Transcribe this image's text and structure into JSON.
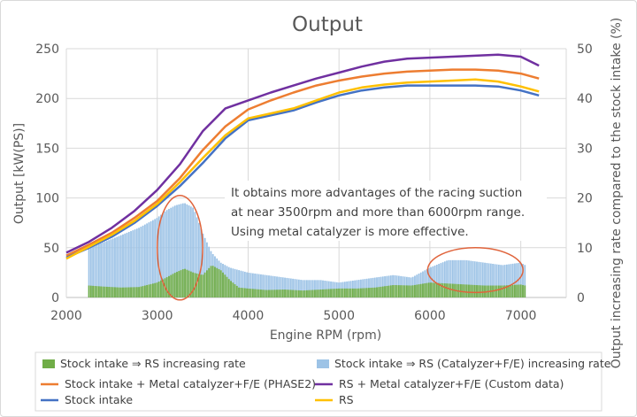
{
  "chart_data": {
    "type": "line",
    "title": "Output",
    "xlabel": "Engine RPM (rpm)",
    "ylabel": "Output [kW(PS)]",
    "y2label": "Output increasing rate compared to the stock intake (%)",
    "xlim": [
      2000,
      7500
    ],
    "ylim": [
      0,
      250
    ],
    "y2lim": [
      0,
      50
    ],
    "x_ticks": [
      "2000",
      "3000",
      "4000",
      "5000",
      "6000",
      "7000"
    ],
    "y_ticks": [
      "0",
      "50",
      "100",
      "150",
      "200",
      "250"
    ],
    "y2_ticks": [
      "0",
      "10",
      "20",
      "30",
      "40",
      "50"
    ],
    "grid": true,
    "legend_position": "bottom",
    "annotation": [
      "It obtains more advantages of the racing suction",
      "at near 3500rpm and more than 6000rpm range.",
      "Using metal catalyzer is more effective."
    ],
    "rate_series": [
      {
        "name": "Stock intake ⇒ RS increasing rate",
        "color": "#70ad47",
        "axis": "y2",
        "x": [
          2250,
          2400,
          2600,
          2800,
          3000,
          3200,
          3300,
          3400,
          3500,
          3600,
          3700,
          3800,
          3900,
          4000,
          4200,
          4400,
          4600,
          4800,
          5000,
          5200,
          5400,
          5600,
          5800,
          6000,
          6200,
          6400,
          6600,
          6800,
          7000,
          7050
        ],
        "values": [
          2.4,
          2.2,
          2.0,
          2.1,
          3.0,
          5.0,
          5.8,
          5.0,
          4.5,
          6.5,
          5.5,
          3.5,
          2.0,
          1.8,
          1.5,
          1.6,
          1.4,
          1.6,
          1.8,
          1.8,
          2.0,
          2.5,
          2.4,
          3.0,
          2.8,
          2.6,
          2.4,
          2.4,
          2.6,
          2.4
        ]
      },
      {
        "name": "Stock intake ⇒ RS (Catalyzer+F/E) increasing rate",
        "color": "#9dc3e6",
        "axis": "y2",
        "x": [
          2250,
          2400,
          2600,
          2800,
          3000,
          3100,
          3200,
          3300,
          3400,
          3500,
          3600,
          3700,
          3800,
          3900,
          4000,
          4200,
          4400,
          4600,
          4800,
          5000,
          5200,
          5400,
          5600,
          5800,
          6000,
          6200,
          6400,
          6600,
          6800,
          7000,
          7050
        ],
        "values": [
          10.0,
          11.0,
          12.5,
          14.0,
          16.0,
          17.5,
          18.5,
          19.0,
          18.0,
          13.0,
          9.0,
          7.0,
          6.0,
          5.5,
          5.0,
          4.5,
          4.0,
          3.5,
          3.5,
          3.0,
          3.5,
          4.0,
          4.5,
          4.0,
          6.0,
          7.5,
          7.5,
          7.0,
          6.5,
          7.0,
          6.5
        ]
      }
    ],
    "series": [
      {
        "name": "Stock intake + Metal catalyzer+F/E (PHASE2)",
        "color": "#ed7d31",
        "axis": "y",
        "x": [
          2000,
          2250,
          2500,
          2750,
          3000,
          3250,
          3500,
          3750,
          4000,
          4250,
          4500,
          4750,
          5000,
          5250,
          5500,
          5750,
          6000,
          6250,
          6500,
          6750,
          7000,
          7200
        ],
        "values": [
          42,
          53,
          65,
          80,
          97,
          120,
          148,
          172,
          189,
          198,
          206,
          213,
          218,
          222,
          225,
          227,
          228,
          229,
          229,
          228,
          225,
          220
        ]
      },
      {
        "name": "RS + Metal catalyzer+F/E (Custom data)",
        "color": "#7030a0",
        "axis": "y",
        "x": [
          2000,
          2250,
          2500,
          2750,
          3000,
          3250,
          3500,
          3750,
          4000,
          4250,
          4500,
          4750,
          5000,
          5250,
          5500,
          5750,
          6000,
          6250,
          6500,
          6750,
          7000,
          7200
        ],
        "values": [
          45,
          56,
          70,
          87,
          108,
          134,
          167,
          190,
          198,
          206,
          213,
          220,
          226,
          232,
          237,
          240,
          241,
          242,
          243,
          244,
          242,
          233
        ]
      },
      {
        "name": "Stock intake",
        "color": "#4472c4",
        "axis": "y",
        "x": [
          2000,
          2250,
          2500,
          2750,
          3000,
          3250,
          3500,
          3750,
          4000,
          4250,
          4500,
          4750,
          5000,
          5250,
          5500,
          5750,
          6000,
          6250,
          6500,
          6750,
          7000,
          7200
        ],
        "values": [
          40,
          50,
          61,
          75,
          92,
          112,
          135,
          160,
          178,
          183,
          188,
          196,
          203,
          208,
          211,
          213,
          213,
          213,
          213,
          212,
          208,
          203
        ]
      },
      {
        "name": "RS",
        "color": "#ffc000",
        "axis": "y",
        "x": [
          2000,
          2250,
          2500,
          2750,
          3000,
          3250,
          3500,
          3750,
          4000,
          4250,
          4500,
          4750,
          5000,
          5250,
          5500,
          5750,
          6000,
          6250,
          6500,
          6750,
          7000,
          7200
        ],
        "values": [
          39,
          51,
          63,
          77,
          94,
          116,
          140,
          163,
          180,
          185,
          190,
          198,
          206,
          211,
          214,
          216,
          217,
          218,
          219,
          217,
          212,
          207
        ]
      }
    ],
    "highlights": [
      {
        "center_x": 3250,
        "center_y2": 10,
        "rx_units": 250,
        "ry_units": 10.5
      },
      {
        "center_x": 6500,
        "center_y2": 5.5,
        "rx_units": 525,
        "ry_units": 4.5
      }
    ]
  }
}
